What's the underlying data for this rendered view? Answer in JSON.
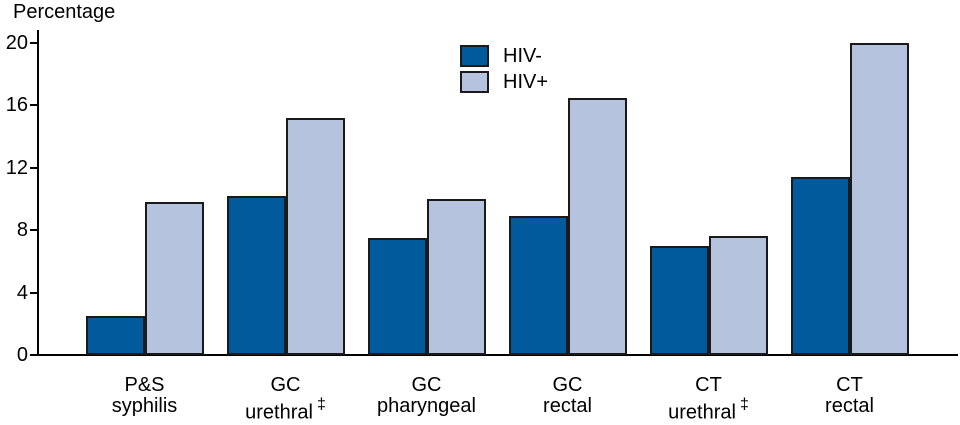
{
  "chart_data": {
    "type": "bar",
    "title": "",
    "xlabel": "",
    "ylabel": "Percentage",
    "ylim": [
      0,
      20
    ],
    "yticks": [
      0,
      4,
      8,
      12,
      16,
      20
    ],
    "grid": false,
    "legend_position": "top-center",
    "categories": [
      {
        "line1": "P&S",
        "line2": "syphilis",
        "footnote": ""
      },
      {
        "line1": "GC",
        "line2": "urethral",
        "footnote": "‡"
      },
      {
        "line1": "GC",
        "line2": "pharyngeal",
        "footnote": ""
      },
      {
        "line1": "GC",
        "line2": "rectal",
        "footnote": ""
      },
      {
        "line1": "CT",
        "line2": "urethral",
        "footnote": "‡"
      },
      {
        "line1": "CT",
        "line2": "rectal",
        "footnote": ""
      }
    ],
    "series": [
      {
        "name": "HIV-",
        "color": "#005a9c",
        "values": [
          2.5,
          10.2,
          7.5,
          8.9,
          7.0,
          11.4
        ]
      },
      {
        "name": "HIV+",
        "color": "#b6c3de",
        "values": [
          9.8,
          15.2,
          10.0,
          16.5,
          7.6,
          20.0
        ]
      }
    ]
  },
  "colors": {
    "bar_outline": "#1a1a1a",
    "axis": "#000000",
    "background": "#ffffff"
  }
}
